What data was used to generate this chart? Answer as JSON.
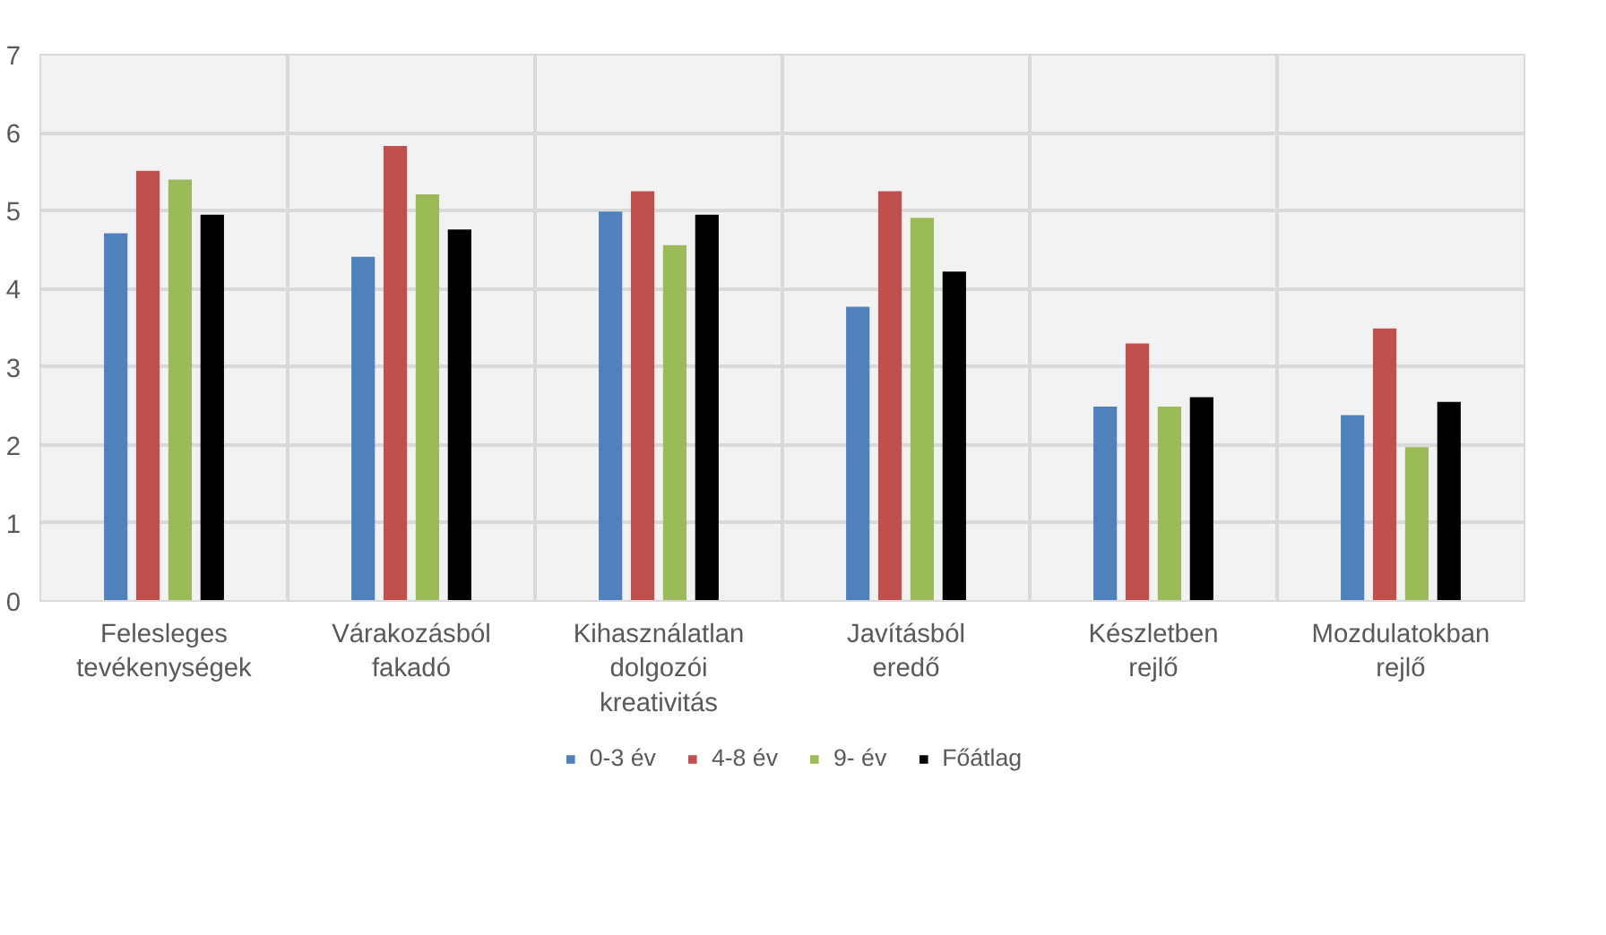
{
  "chart_data": {
    "type": "bar",
    "categories": [
      "Felesleges tevékenységek",
      "Várakozásból fakadó",
      "Kihasználatlan dolgozói kreativitás",
      "Javításból eredő",
      "Készletben rejlő",
      "Mozdulatokban rejlő"
    ],
    "series": [
      {
        "name": "0-3 év",
        "color": "#4f81bd",
        "values": [
          4.71,
          4.41,
          4.99,
          3.77,
          2.49,
          2.38
        ]
      },
      {
        "name": "4-8 év",
        "color": "#c0504d",
        "values": [
          5.51,
          5.83,
          5.25,
          5.25,
          3.3,
          3.49
        ]
      },
      {
        "name": "9- év",
        "color": "#9bbb59",
        "values": [
          5.4,
          5.21,
          4.56,
          4.91,
          2.49,
          1.97
        ]
      },
      {
        "name": "Főátlag",
        "color": "#000000",
        "values": [
          4.95,
          4.76,
          4.95,
          4.22,
          2.61,
          2.55
        ]
      }
    ],
    "ylim": [
      0,
      7
    ],
    "yticks": [
      0,
      1,
      2,
      3,
      4,
      5,
      6,
      7
    ],
    "grid": true,
    "legend": "bottom"
  }
}
